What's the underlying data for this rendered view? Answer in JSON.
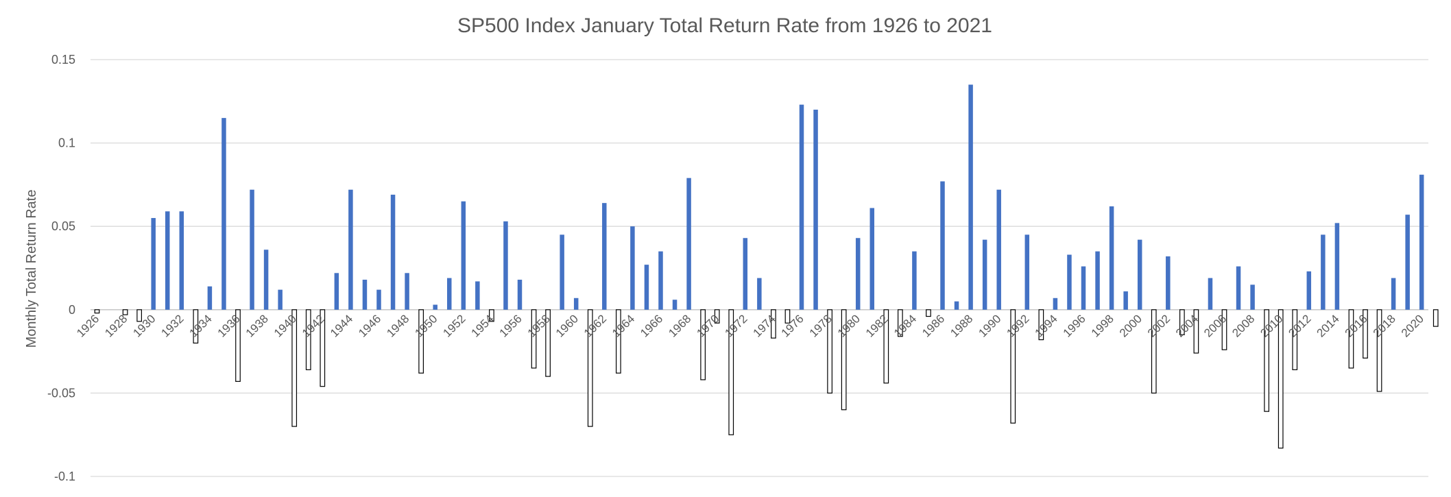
{
  "chart_data": {
    "type": "bar",
    "title": "SP500 Index January Total Return Rate from 1926 to 2021",
    "xlabel": "",
    "ylabel": "Monthly Total Return Rate",
    "ylim": [
      -0.1,
      0.15
    ],
    "yticks": [
      {
        "value": 0.15,
        "label": "0.15"
      },
      {
        "value": 0.1,
        "label": "0.1"
      },
      {
        "value": 0.05,
        "label": "0.05"
      },
      {
        "value": 0,
        "label": "0"
      },
      {
        "value": -0.05,
        "label": "-0.05"
      },
      {
        "value": -0.1,
        "label": "-0.1"
      }
    ],
    "grid": true,
    "legend": "none",
    "x_tick_labels": [
      "1926",
      "1928",
      "1930",
      "1932",
      "1934",
      "1936",
      "1938",
      "1940",
      "1942",
      "1944",
      "1946",
      "1948",
      "1950",
      "1952",
      "1954",
      "1956",
      "1958",
      "1960",
      "1962",
      "1964",
      "1966",
      "1968",
      "1970",
      "1972",
      "1974",
      "1976",
      "1978",
      "1980",
      "1982",
      "1984",
      "1986",
      "1988",
      "1990",
      "1992",
      "1994",
      "1996",
      "1998",
      "2000",
      "2002",
      "2004",
      "2006",
      "2008",
      "2010",
      "2012",
      "2014",
      "2016",
      "2018",
      "2020"
    ],
    "categories": [
      "1926",
      "1927",
      "1928",
      "1929",
      "1930",
      "1931",
      "1932",
      "1933",
      "1934",
      "1935",
      "1936",
      "1937",
      "1938",
      "1939",
      "1940",
      "1941",
      "1942",
      "1943",
      "1944",
      "1945",
      "1946",
      "1947",
      "1948",
      "1949",
      "1950",
      "1951",
      "1952",
      "1953",
      "1954",
      "1955",
      "1956",
      "1957",
      "1958",
      "1959",
      "1960",
      "1961",
      "1962",
      "1963",
      "1964",
      "1965",
      "1966",
      "1967",
      "1968",
      "1969",
      "1970",
      "1971",
      "1972",
      "1973",
      "1974",
      "1975",
      "1976",
      "1977",
      "1978",
      "1979",
      "1980",
      "1981",
      "1982",
      "1983",
      "1984",
      "1985",
      "1986",
      "1987",
      "1988",
      "1989",
      "1990",
      "1991",
      "1992",
      "1993",
      "1994",
      "1995",
      "1996",
      "1997",
      "1998",
      "1999",
      "2000",
      "2001",
      "2002",
      "2003",
      "2004",
      "2005",
      "2006",
      "2007",
      "2008",
      "2009",
      "2010",
      "2011",
      "2012",
      "2013",
      "2014",
      "2015",
      "2016",
      "2017",
      "2018",
      "2019",
      "2020",
      "2021"
    ],
    "values": [
      -0.002,
      0,
      -0.003,
      -0.007,
      0.055,
      0.059,
      0.059,
      -0.02,
      0.014,
      0.115,
      -0.043,
      0.072,
      0.036,
      0.012,
      -0.07,
      -0.036,
      -0.046,
      0.022,
      0.072,
      0.018,
      0.012,
      0.069,
      0.022,
      -0.038,
      0.003,
      0.019,
      0.065,
      0.017,
      -0.007,
      0.053,
      0.018,
      -0.035,
      -0.04,
      0.045,
      0.007,
      -0.07,
      0.064,
      -0.038,
      0.05,
      0.027,
      0.035,
      0.006,
      0.079,
      -0.042,
      -0.008,
      -0.075,
      0.043,
      0.019,
      -0.017,
      -0.008,
      0.123,
      0.12,
      -0.05,
      -0.06,
      0.043,
      0.061,
      -0.044,
      -0.016,
      0.035,
      -0.004,
      0.077,
      0.005,
      0.135,
      0.042,
      0.072,
      -0.068,
      0.045,
      -0.018,
      0.007,
      0.033,
      0.026,
      0.035,
      0.062,
      0.011,
      0.042,
      -0.05,
      0.032,
      -0.015,
      -0.026,
      0.019,
      -0.024,
      0.026,
      0.015,
      -0.061,
      -0.083,
      -0.036,
      0.023,
      0.045,
      0.052,
      -0.035,
      -0.029,
      -0.049,
      0.019,
      0.057,
      0.081,
      -0.01
    ],
    "colors": {
      "positive_fill": "#4472c4",
      "negative_fill": "#ffffff",
      "negative_stroke": "#000000"
    }
  }
}
